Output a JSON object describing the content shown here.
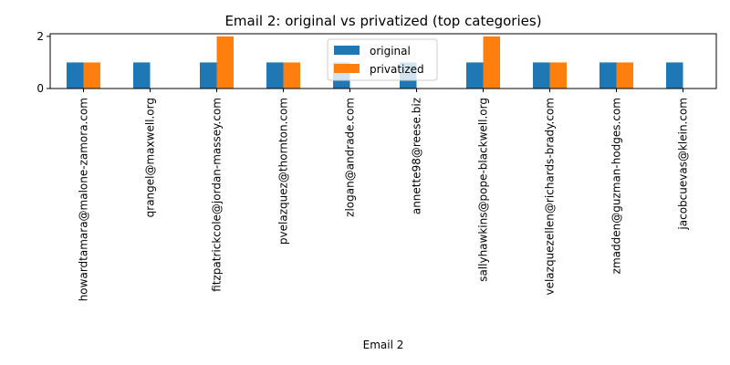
{
  "chart_data": {
    "type": "bar",
    "title": "Email 2: original vs privatized (top categories)",
    "xlabel": "Email 2",
    "ylabel": "",
    "ylim": [
      0,
      2.1
    ],
    "yticks": [
      0,
      2
    ],
    "categories": [
      "howardtamara@malone-zamora.com",
      "qrangel@maxwell.org",
      "fitzpatrickcole@jordan-massey.com",
      "pvelazquez@thornton.com",
      "zlogan@andrade.com",
      "annette98@reese.biz",
      "sallyhawkins@pope-blackwell.org",
      "velazquezellen@richards-brady.com",
      "zmadden@guzman-hodges.com",
      "jacobcuevas@klein.com"
    ],
    "series": [
      {
        "name": "original",
        "color": "#1f77b4",
        "values": [
          1,
          1,
          1,
          1,
          1,
          1,
          1,
          1,
          1,
          1
        ]
      },
      {
        "name": "privatized",
        "color": "#ff7f0e",
        "values": [
          1,
          0,
          2,
          1,
          0,
          0,
          2,
          1,
          1,
          0
        ]
      }
    ],
    "grid": false,
    "legend": "top-center"
  }
}
